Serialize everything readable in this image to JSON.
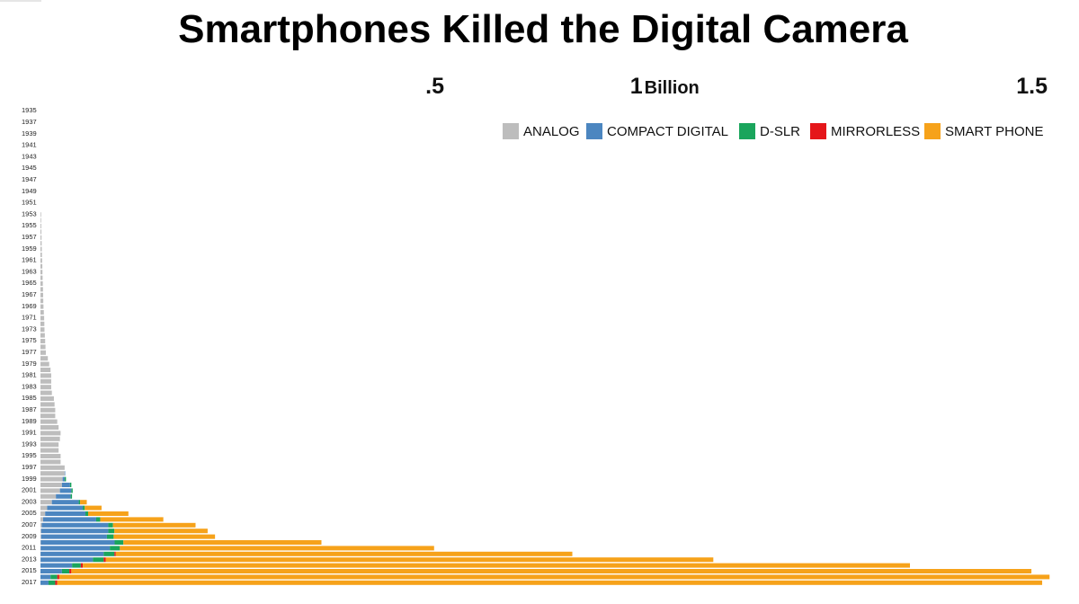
{
  "colors": {
    "analog": "#bdbdbd",
    "compact": "#4c86c0",
    "dslr": "#1aa55c",
    "mirrorless": "#e5161a",
    "smartphone": "#f6a21a"
  },
  "chart_data": {
    "type": "bar",
    "orientation": "horizontal",
    "stacked": true,
    "title": "Smartphones Killed the Digital Camera",
    "unit_label": "Billion",
    "x_ticks": [
      {
        "value": 0.5,
        "label": ".5"
      },
      {
        "value": 1,
        "label": "1"
      },
      {
        "value": 1.5,
        "label": "1.5"
      }
    ],
    "xlim": [
      0,
      1.5
    ],
    "legend_position": "top-right",
    "series": [
      {
        "key": "analog",
        "name": "ANALOG",
        "color": "#bdbdbd"
      },
      {
        "key": "compact",
        "name": "COMPACT DIGITAL",
        "color": "#4c86c0"
      },
      {
        "key": "dslr",
        "name": "D-SLR",
        "color": "#1aa55c"
      },
      {
        "key": "mirrorless",
        "name": "MIRRORLESS",
        "color": "#e5161a"
      },
      {
        "key": "smartphone",
        "name": "SMART PHONE",
        "color": "#f6a21a"
      }
    ],
    "years": [
      1935,
      1936,
      1937,
      1938,
      1939,
      1940,
      1941,
      1942,
      1943,
      1944,
      1945,
      1946,
      1947,
      1948,
      1949,
      1950,
      1951,
      1952,
      1953,
      1954,
      1955,
      1956,
      1957,
      1958,
      1959,
      1960,
      1961,
      1962,
      1963,
      1964,
      1965,
      1966,
      1967,
      1968,
      1969,
      1970,
      1971,
      1972,
      1973,
      1974,
      1975,
      1976,
      1977,
      1978,
      1979,
      1980,
      1981,
      1982,
      1983,
      1984,
      1985,
      1986,
      1987,
      1988,
      1989,
      1990,
      1991,
      1992,
      1993,
      1994,
      1995,
      1996,
      1997,
      1998,
      1999,
      2000,
      2001,
      2002,
      2003,
      2004,
      2005,
      2006,
      2007,
      2008,
      2009,
      2010,
      2011,
      2012,
      2013,
      2014,
      2015,
      2016,
      2017
    ],
    "year_labels": [
      "1935",
      "1937",
      "1939",
      "1941",
      "1943",
      "1945",
      "1947",
      "1949",
      "1951",
      "1953",
      "1955",
      "1957",
      "1959",
      "1961",
      "1963",
      "1965",
      "1967",
      "1969",
      "1971",
      "1973",
      "1975",
      "1977",
      "1979",
      "1981",
      "1983",
      "1985",
      "1987",
      "1989",
      "1991",
      "1993",
      "1995",
      "1997",
      "1999",
      "2001",
      "2003",
      "2005",
      "2007",
      "2009",
      "2011",
      "2013",
      "2015",
      "2017"
    ],
    "values": {
      "analog": [
        0,
        0,
        0,
        0,
        0,
        0,
        0,
        0,
        0,
        0,
        0,
        0,
        0,
        0,
        0,
        0,
        0,
        0,
        0.001,
        0.001,
        0.0012,
        0.0014,
        0.0016,
        0.0018,
        0.002,
        0.0022,
        0.0025,
        0.0028,
        0.003,
        0.0032,
        0.0035,
        0.0038,
        0.004,
        0.0042,
        0.0045,
        0.005,
        0.0055,
        0.0058,
        0.006,
        0.0065,
        0.007,
        0.0075,
        0.008,
        0.011,
        0.013,
        0.015,
        0.016,
        0.016,
        0.016,
        0.017,
        0.02,
        0.021,
        0.022,
        0.022,
        0.025,
        0.027,
        0.03,
        0.029,
        0.027,
        0.027,
        0.03,
        0.03,
        0.036,
        0.036,
        0.033,
        0.032,
        0.029,
        0.023,
        0.017,
        0.01,
        0.007,
        0.004,
        0.002,
        0.001,
        0.001,
        0.0005,
        0.0003,
        0.0002,
        0.0002,
        0.0001,
        0,
        0,
        0
      ],
      "compact": [
        0,
        0,
        0,
        0,
        0,
        0,
        0,
        0,
        0,
        0,
        0,
        0,
        0,
        0,
        0,
        0,
        0,
        0,
        0,
        0,
        0,
        0,
        0,
        0,
        0,
        0,
        0,
        0,
        0,
        0,
        0,
        0,
        0,
        0,
        0,
        0,
        0,
        0,
        0,
        0,
        0,
        0,
        0,
        0,
        0,
        0,
        0,
        0,
        0,
        0,
        0,
        0,
        0,
        0,
        0,
        0,
        0,
        0,
        0,
        0,
        0,
        0,
        0,
        0.0005,
        0.003,
        0.012,
        0.017,
        0.022,
        0.04,
        0.053,
        0.06,
        0.079,
        0.099,
        0.1,
        0.098,
        0.11,
        0.103,
        0.094,
        0.078,
        0.047,
        0.032,
        0.015,
        0.012
      ],
      "dslr": [
        0,
        0,
        0,
        0,
        0,
        0,
        0,
        0,
        0,
        0,
        0,
        0,
        0,
        0,
        0,
        0,
        0,
        0,
        0,
        0,
        0,
        0,
        0,
        0,
        0,
        0,
        0,
        0,
        0,
        0,
        0,
        0,
        0,
        0,
        0,
        0,
        0,
        0,
        0,
        0,
        0,
        0,
        0,
        0,
        0,
        0,
        0,
        0,
        0,
        0,
        0,
        0,
        0,
        0,
        0,
        0,
        0,
        0,
        0,
        0,
        0,
        0,
        0,
        0,
        0.002,
        0.002,
        0.002,
        0.002,
        0.002,
        0.003,
        0.004,
        0.006,
        0.007,
        0.009,
        0.01,
        0.013,
        0.015,
        0.016,
        0.016,
        0.013,
        0.011,
        0.01,
        0.01
      ],
      "mirrorless": [
        0,
        0,
        0,
        0,
        0,
        0,
        0,
        0,
        0,
        0,
        0,
        0,
        0,
        0,
        0,
        0,
        0,
        0,
        0,
        0,
        0,
        0,
        0,
        0,
        0,
        0,
        0,
        0,
        0,
        0,
        0,
        0,
        0,
        0,
        0,
        0,
        0,
        0,
        0,
        0,
        0,
        0,
        0,
        0,
        0,
        0,
        0,
        0,
        0,
        0,
        0,
        0,
        0,
        0,
        0,
        0,
        0,
        0,
        0,
        0,
        0,
        0,
        0,
        0,
        0,
        0,
        0,
        0,
        0,
        0,
        0,
        0,
        0,
        0,
        0,
        0,
        0,
        0.002,
        0.003,
        0.003,
        0.003,
        0.003,
        0.003
      ],
      "smartphone": [
        0,
        0,
        0,
        0,
        0,
        0,
        0,
        0,
        0,
        0,
        0,
        0,
        0,
        0,
        0,
        0,
        0,
        0,
        0,
        0,
        0,
        0,
        0,
        0,
        0,
        0,
        0,
        0,
        0,
        0,
        0,
        0,
        0,
        0,
        0,
        0,
        0,
        0,
        0,
        0,
        0,
        0,
        0,
        0,
        0,
        0,
        0,
        0,
        0,
        0,
        0,
        0,
        0,
        0,
        0,
        0,
        0,
        0,
        0,
        0,
        0,
        0,
        0,
        0,
        0,
        0,
        0,
        0,
        0.01,
        0.025,
        0.06,
        0.094,
        0.123,
        0.139,
        0.151,
        0.295,
        0.468,
        0.68,
        0.905,
        1.232,
        1.43,
        1.475,
        1.467
      ]
    }
  }
}
